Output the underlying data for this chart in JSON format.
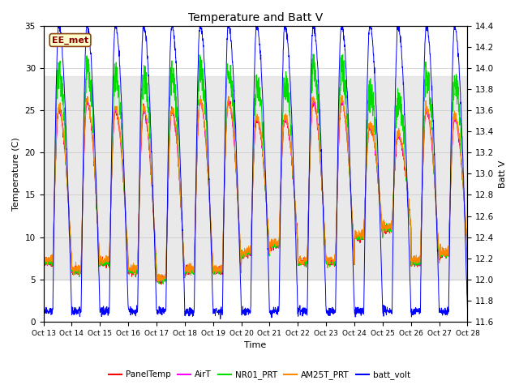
{
  "title": "Temperature and Batt V",
  "xlabel": "Time",
  "ylabel_left": "Temperature (C)",
  "ylabel_right": "Batt V",
  "ylim_left": [
    0,
    35
  ],
  "ylim_right": [
    11.6,
    14.4
  ],
  "shade_band_low": 5,
  "shade_band_high": 29,
  "x_ticks_labels": [
    "Oct 13",
    "Oct 14",
    "Oct 15",
    "Oct 16",
    "Oct 17",
    "Oct 18",
    "Oct 19",
    "Oct 20",
    "Oct 21",
    "Oct 22",
    "Oct 23",
    "Oct 24",
    "Oct 25",
    "Oct 26",
    "Oct 27",
    "Oct 28"
  ],
  "x_ticks_pos": [
    0,
    24,
    48,
    72,
    96,
    120,
    144,
    168,
    192,
    216,
    240,
    264,
    288,
    312,
    336,
    360
  ],
  "site_label": "EE_met",
  "legend_entries": [
    "PanelTemp",
    "AirT",
    "NR01_PRT",
    "AM25T_PRT",
    "batt_volt"
  ],
  "colors": {
    "PanelTemp": "#ff0000",
    "AirT": "#ff00ff",
    "NR01_PRT": "#00dd00",
    "AM25T_PRT": "#ff8800",
    "batt_volt": "#0000ff"
  },
  "shade_color": "#e0e0e0",
  "shade_alpha": 0.7,
  "background_color": "#ffffff",
  "n_points": 2160,
  "batt_volt_lo": 11.7,
  "batt_volt_hi": 14.4,
  "temp_base": 7.0,
  "temp_peak": 25.0
}
